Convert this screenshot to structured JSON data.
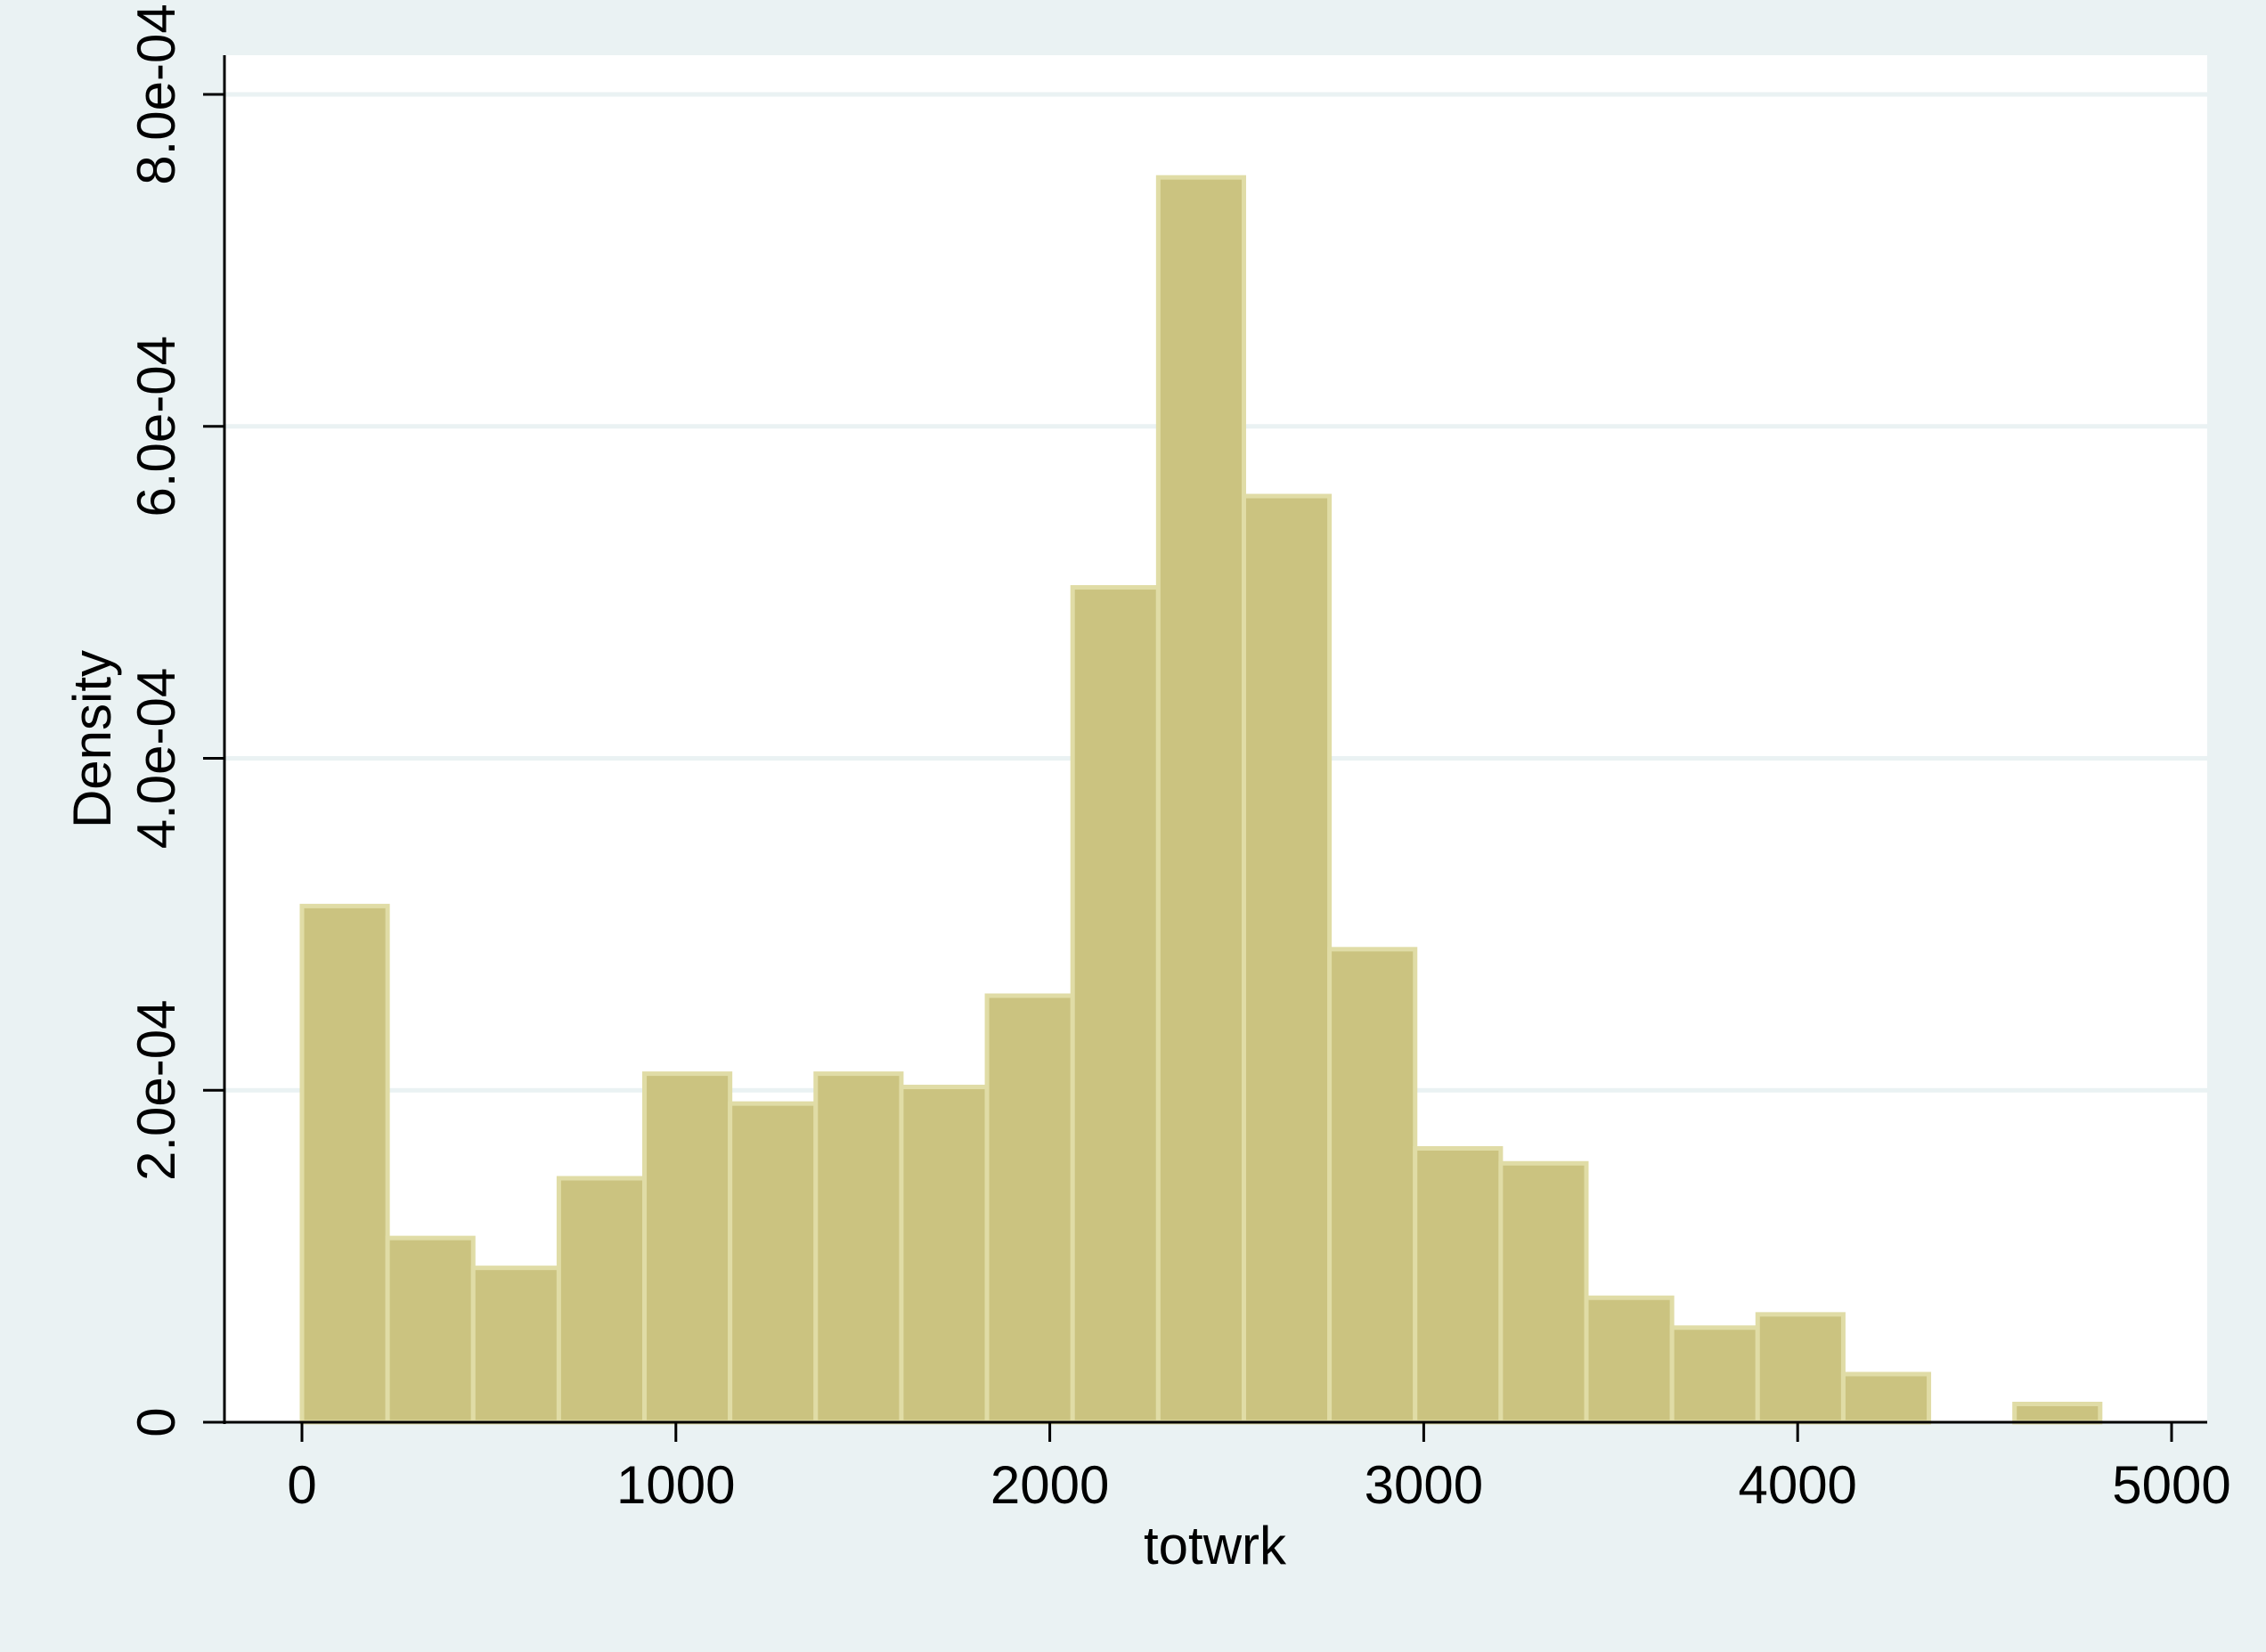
{
  "colors": {
    "background": "#eaf2f3",
    "plot_background": "#ffffff",
    "gridline": "#eaf2f3",
    "bar_fill": "#cbc380",
    "bar_stroke": "#e0dca6",
    "axis": "#000000"
  },
  "chart_data": {
    "type": "bar",
    "histogram": true,
    "title": "",
    "xlabel": "totwrk",
    "ylabel": "Density",
    "xlim": [
      -200,
      5100
    ],
    "ylim": [
      0,
      0.0008
    ],
    "grid": true,
    "x_ticks": [
      {
        "value": 0,
        "label": "0"
      },
      {
        "value": 1000,
        "label": "1000"
      },
      {
        "value": 2000,
        "label": "2000"
      },
      {
        "value": 3000,
        "label": "3000"
      },
      {
        "value": 4000,
        "label": "4000"
      },
      {
        "value": 5000,
        "label": "5000"
      }
    ],
    "y_ticks": [
      {
        "value": 0,
        "label": "0"
      },
      {
        "value": 0.0002,
        "label": "2.0e-04"
      },
      {
        "value": 0.0004,
        "label": "4.0e-04"
      },
      {
        "value": 0.0006,
        "label": "6.0e-04"
      },
      {
        "value": 0.0008,
        "label": "8.0e-04"
      }
    ],
    "bins": [
      {
        "x0": 0,
        "x1": 229,
        "density": 0.000311
      },
      {
        "x0": 229,
        "x1": 458,
        "density": 0.000111
      },
      {
        "x0": 458,
        "x1": 687,
        "density": 9.3e-05
      },
      {
        "x0": 687,
        "x1": 916,
        "density": 0.000147
      },
      {
        "x0": 916,
        "x1": 1145,
        "density": 0.00021
      },
      {
        "x0": 1145,
        "x1": 1374,
        "density": 0.000192
      },
      {
        "x0": 1374,
        "x1": 1603,
        "density": 0.00021
      },
      {
        "x0": 1603,
        "x1": 1832,
        "density": 0.000202
      },
      {
        "x0": 1832,
        "x1": 2061,
        "density": 0.000257
      },
      {
        "x0": 2061,
        "x1": 2290,
        "density": 0.000503
      },
      {
        "x0": 2290,
        "x1": 2519,
        "density": 0.00075
      },
      {
        "x0": 2519,
        "x1": 2748,
        "density": 0.000558
      },
      {
        "x0": 2748,
        "x1": 2977,
        "density": 0.000285
      },
      {
        "x0": 2977,
        "x1": 3206,
        "density": 0.000165
      },
      {
        "x0": 3206,
        "x1": 3435,
        "density": 0.000156
      },
      {
        "x0": 3435,
        "x1": 3664,
        "density": 7.5e-05
      },
      {
        "x0": 3664,
        "x1": 3893,
        "density": 5.7e-05
      },
      {
        "x0": 3893,
        "x1": 4122,
        "density": 6.5e-05
      },
      {
        "x0": 4122,
        "x1": 4351,
        "density": 2.9e-05
      },
      {
        "x0": 4351,
        "x1": 4580,
        "density": 0.0
      },
      {
        "x0": 4580,
        "x1": 4809,
        "density": 1.1e-05
      }
    ]
  }
}
